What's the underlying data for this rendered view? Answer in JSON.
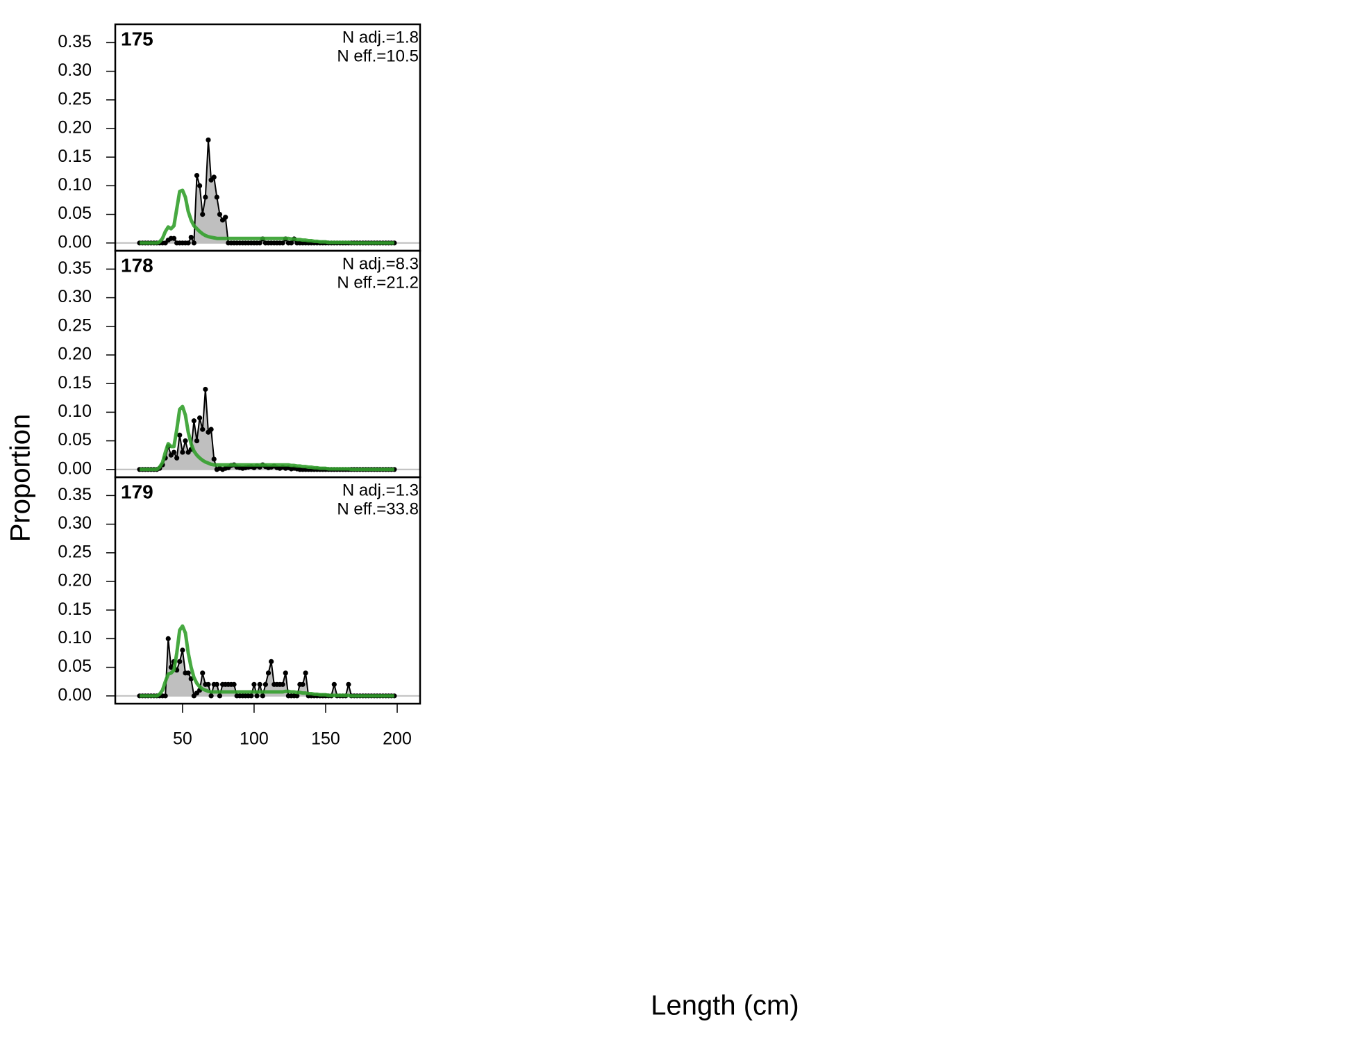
{
  "chart_data": {
    "type": "line",
    "xlabel": "Length (cm)",
    "ylabel": "Proportion",
    "xlim": [
      3,
      216
    ],
    "ylim": [
      -0.0136,
      0.382
    ],
    "xticks": [
      50,
      100,
      150,
      200
    ],
    "yticks": [
      {
        "value": 0,
        "label": "0.00"
      },
      {
        "value": 0.05,
        "label": "0.05"
      },
      {
        "value": 0.1,
        "label": "0.10"
      },
      {
        "value": 0.15,
        "label": "0.15"
      },
      {
        "value": 0.2,
        "label": "0.20"
      },
      {
        "value": 0.25,
        "label": "0.25"
      },
      {
        "value": 0.3,
        "label": "0.30"
      },
      {
        "value": 0.35,
        "label": "0.35"
      }
    ],
    "x": [
      20,
      22,
      24,
      26,
      28,
      30,
      32,
      34,
      36,
      38,
      40,
      42,
      44,
      46,
      48,
      50,
      52,
      54,
      56,
      58,
      60,
      62,
      64,
      66,
      68,
      70,
      72,
      74,
      76,
      78,
      80,
      82,
      84,
      86,
      88,
      90,
      92,
      94,
      96,
      98,
      100,
      102,
      104,
      106,
      108,
      110,
      112,
      114,
      116,
      118,
      120,
      122,
      124,
      126,
      128,
      130,
      132,
      134,
      136,
      138,
      140,
      142,
      144,
      146,
      148,
      150,
      152,
      154,
      156,
      158,
      160,
      162,
      164,
      166,
      168,
      170,
      172,
      174,
      176,
      178,
      180,
      182,
      184,
      186,
      188,
      190,
      192,
      194,
      196,
      198
    ],
    "panels": [
      {
        "title": "175",
        "annotations": [
          "N adj.=1.8",
          "N eff.=10.5"
        ],
        "series": [
          {
            "color": "#000000",
            "fill": "#bfbfbf",
            "values": [
              0,
              0,
              0,
              0,
              0,
              0,
              0,
              0,
              0,
              0,
              0.005,
              0.008,
              0.008,
              0,
              0,
              0,
              0,
              0,
              0.01,
              0,
              0.118,
              0.1,
              0.05,
              0.08,
              0.18,
              0.11,
              0.115,
              0.08,
              0.05,
              0.04,
              0.045,
              0,
              0,
              0,
              0,
              0,
              0,
              0,
              0,
              0,
              0,
              0,
              0,
              0.007,
              0,
              0,
              0,
              0,
              0,
              0,
              0,
              0.007,
              0,
              0,
              0.007,
              0,
              0,
              0,
              0,
              0,
              0,
              0,
              0,
              0,
              0,
              0,
              0,
              0,
              0,
              0,
              0,
              0,
              0,
              0,
              0,
              0,
              0,
              0,
              0,
              0,
              0,
              0,
              0,
              0,
              0,
              0,
              0,
              0,
              0,
              0
            ]
          },
          {
            "color": "#33a02c",
            "values": [
              0,
              0,
              0,
              0,
              0,
              0,
              0,
              0.002,
              0.008,
              0.02,
              0.028,
              0.025,
              0.03,
              0.06,
              0.09,
              0.092,
              0.08,
              0.055,
              0.04,
              0.03,
              0.025,
              0.02,
              0.016,
              0.013,
              0.011,
              0.01,
              0.009,
              0.008,
              0.008,
              0.008,
              0.008,
              0.008,
              0.008,
              0.008,
              0.008,
              0.008,
              0.008,
              0.008,
              0.008,
              0.008,
              0.008,
              0.008,
              0.008,
              0.008,
              0.008,
              0.008,
              0.008,
              0.008,
              0.008,
              0.008,
              0.008,
              0.008,
              0.008,
              0.007,
              0.007,
              0.006,
              0.006,
              0.005,
              0.005,
              0.004,
              0.004,
              0.003,
              0.003,
              0.002,
              0.002,
              0.002,
              0.001,
              0.001,
              0.001,
              0.001,
              0.001,
              0.001,
              0.001,
              0.001,
              0,
              0,
              0,
              0,
              0,
              0,
              0,
              0,
              0,
              0,
              0,
              0,
              0,
              0,
              0,
              0
            ]
          }
        ]
      },
      {
        "title": "178",
        "annotations": [
          "N adj.=8.3",
          "N eff.=21.2"
        ],
        "series": [
          {
            "color": "#000000",
            "fill": "#bfbfbf",
            "values": [
              0,
              0,
              0,
              0,
              0,
              0,
              0,
              0.002,
              0.008,
              0.02,
              0.04,
              0.025,
              0.03,
              0.02,
              0.06,
              0.03,
              0.05,
              0.03,
              0.035,
              0.085,
              0.05,
              0.09,
              0.07,
              0.14,
              0.065,
              0.07,
              0.018,
              0,
              0.002,
              0,
              0.002,
              0.003,
              0.007,
              0.008,
              0.004,
              0.003,
              0.002,
              0.003,
              0.004,
              0.005,
              0.003,
              0.006,
              0.004,
              0.008,
              0.005,
              0.003,
              0.004,
              0.006,
              0.003,
              0.002,
              0.004,
              0.002,
              0.003,
              0.001,
              0.002,
              0.001,
              0,
              0,
              0,
              0,
              0,
              0,
              0,
              0,
              0,
              0,
              0,
              0,
              0,
              0,
              0,
              0,
              0,
              0,
              0,
              0,
              0,
              0,
              0,
              0,
              0,
              0,
              0,
              0,
              0,
              0,
              0,
              0,
              0,
              0
            ]
          },
          {
            "color": "#33a02c",
            "values": [
              0,
              0,
              0,
              0,
              0,
              0,
              0,
              0.004,
              0.012,
              0.03,
              0.045,
              0.04,
              0.04,
              0.07,
              0.105,
              0.11,
              0.095,
              0.065,
              0.045,
              0.032,
              0.025,
              0.02,
              0.016,
              0.013,
              0.011,
              0.009,
              0.008,
              0.008,
              0.008,
              0.008,
              0.008,
              0.008,
              0.008,
              0.008,
              0.008,
              0.008,
              0.008,
              0.008,
              0.008,
              0.008,
              0.008,
              0.008,
              0.008,
              0.008,
              0.008,
              0.008,
              0.008,
              0.008,
              0.008,
              0.008,
              0.008,
              0.008,
              0.008,
              0.007,
              0.007,
              0.006,
              0.006,
              0.005,
              0.005,
              0.004,
              0.004,
              0.003,
              0.003,
              0.002,
              0.002,
              0.002,
              0.001,
              0.001,
              0.001,
              0.001,
              0.001,
              0.001,
              0.001,
              0.001,
              0,
              0,
              0,
              0,
              0,
              0,
              0,
              0,
              0,
              0,
              0,
              0,
              0,
              0,
              0,
              0
            ]
          }
        ]
      },
      {
        "title": "179",
        "annotations": [
          "N adj.=1.3",
          "N eff.=33.8"
        ],
        "series": [
          {
            "color": "#000000",
            "fill": "#bfbfbf",
            "values": [
              0,
              0,
              0,
              0,
              0,
              0,
              0,
              0,
              0,
              0,
              0.1,
              0.05,
              0.06,
              0.045,
              0.06,
              0.08,
              0.04,
              0.04,
              0.03,
              0,
              0.005,
              0.01,
              0.04,
              0.02,
              0.02,
              0,
              0.02,
              0.02,
              0,
              0.02,
              0.02,
              0.02,
              0.02,
              0.02,
              0,
              0,
              0,
              0,
              0,
              0,
              0.02,
              0,
              0.02,
              0,
              0.02,
              0.04,
              0.06,
              0.02,
              0.02,
              0.02,
              0.02,
              0.04,
              0,
              0,
              0,
              0,
              0.02,
              0.02,
              0.04,
              0,
              0,
              0,
              0,
              0,
              0,
              0,
              0,
              0,
              0.02,
              0,
              0,
              0,
              0,
              0.02,
              0,
              0,
              0,
              0,
              0,
              0,
              0,
              0,
              0,
              0,
              0,
              0,
              0,
              0,
              0,
              0
            ]
          },
          {
            "color": "#33a02c",
            "values": [
              0,
              0,
              0,
              0,
              0,
              0,
              0,
              0.003,
              0.01,
              0.025,
              0.038,
              0.04,
              0.045,
              0.075,
              0.115,
              0.122,
              0.11,
              0.075,
              0.05,
              0.032,
              0.022,
              0.016,
              0.012,
              0.01,
              0.008,
              0.007,
              0.007,
              0.007,
              0.007,
              0.007,
              0.007,
              0.007,
              0.007,
              0.007,
              0.007,
              0.007,
              0.007,
              0.007,
              0.007,
              0.007,
              0.007,
              0.007,
              0.007,
              0.007,
              0.007,
              0.007,
              0.007,
              0.007,
              0.007,
              0.007,
              0.007,
              0.008,
              0.008,
              0.007,
              0.007,
              0.006,
              0.006,
              0.005,
              0.005,
              0.004,
              0.004,
              0.003,
              0.003,
              0.002,
              0.002,
              0.002,
              0.001,
              0.001,
              0.001,
              0.001,
              0.001,
              0.001,
              0.001,
              0.001,
              0,
              0,
              0,
              0,
              0,
              0,
              0,
              0,
              0,
              0,
              0,
              0,
              0,
              0,
              0,
              0
            ]
          }
        ]
      }
    ]
  }
}
